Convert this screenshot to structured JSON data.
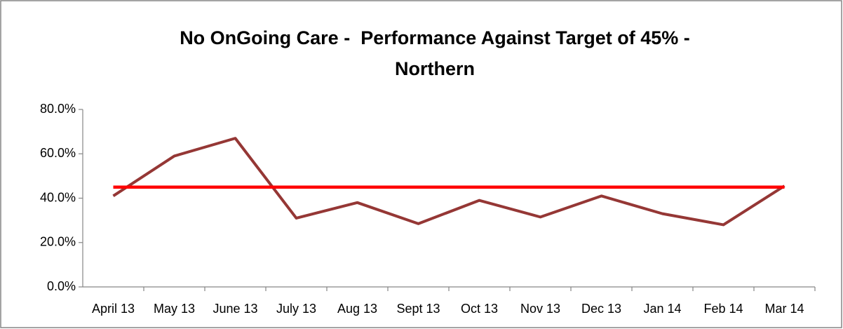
{
  "chart_data": {
    "type": "line",
    "title": [
      "No OnGoing Care -  Performance Against Target of 45% -",
      "Northern"
    ],
    "categories": [
      "April 13",
      "May 13",
      "June 13",
      "July 13",
      "Aug 13",
      "Sept 13",
      "Oct 13",
      "Nov 13",
      "Dec 13",
      "Jan 14",
      "Feb 14",
      "Mar 14"
    ],
    "series": [
      {
        "color": "#953735",
        "values": [
          41,
          59,
          67,
          31,
          38,
          28.5,
          39,
          31.5,
          41,
          33,
          28,
          45.5
        ]
      },
      {
        "color": "#ff0000",
        "values": [
          45,
          45,
          45,
          45,
          45,
          45,
          45,
          45,
          45,
          45,
          45,
          45
        ]
      }
    ],
    "ylim": [
      0,
      80
    ],
    "yticks": [
      {
        "value": 0,
        "label": "0.0%"
      },
      {
        "value": 20,
        "label": "20.0%"
      },
      {
        "value": 40,
        "label": "40.0%"
      },
      {
        "value": 60,
        "label": "60.0%"
      },
      {
        "value": 80,
        "label": "80.0%"
      }
    ],
    "grid": false
  }
}
